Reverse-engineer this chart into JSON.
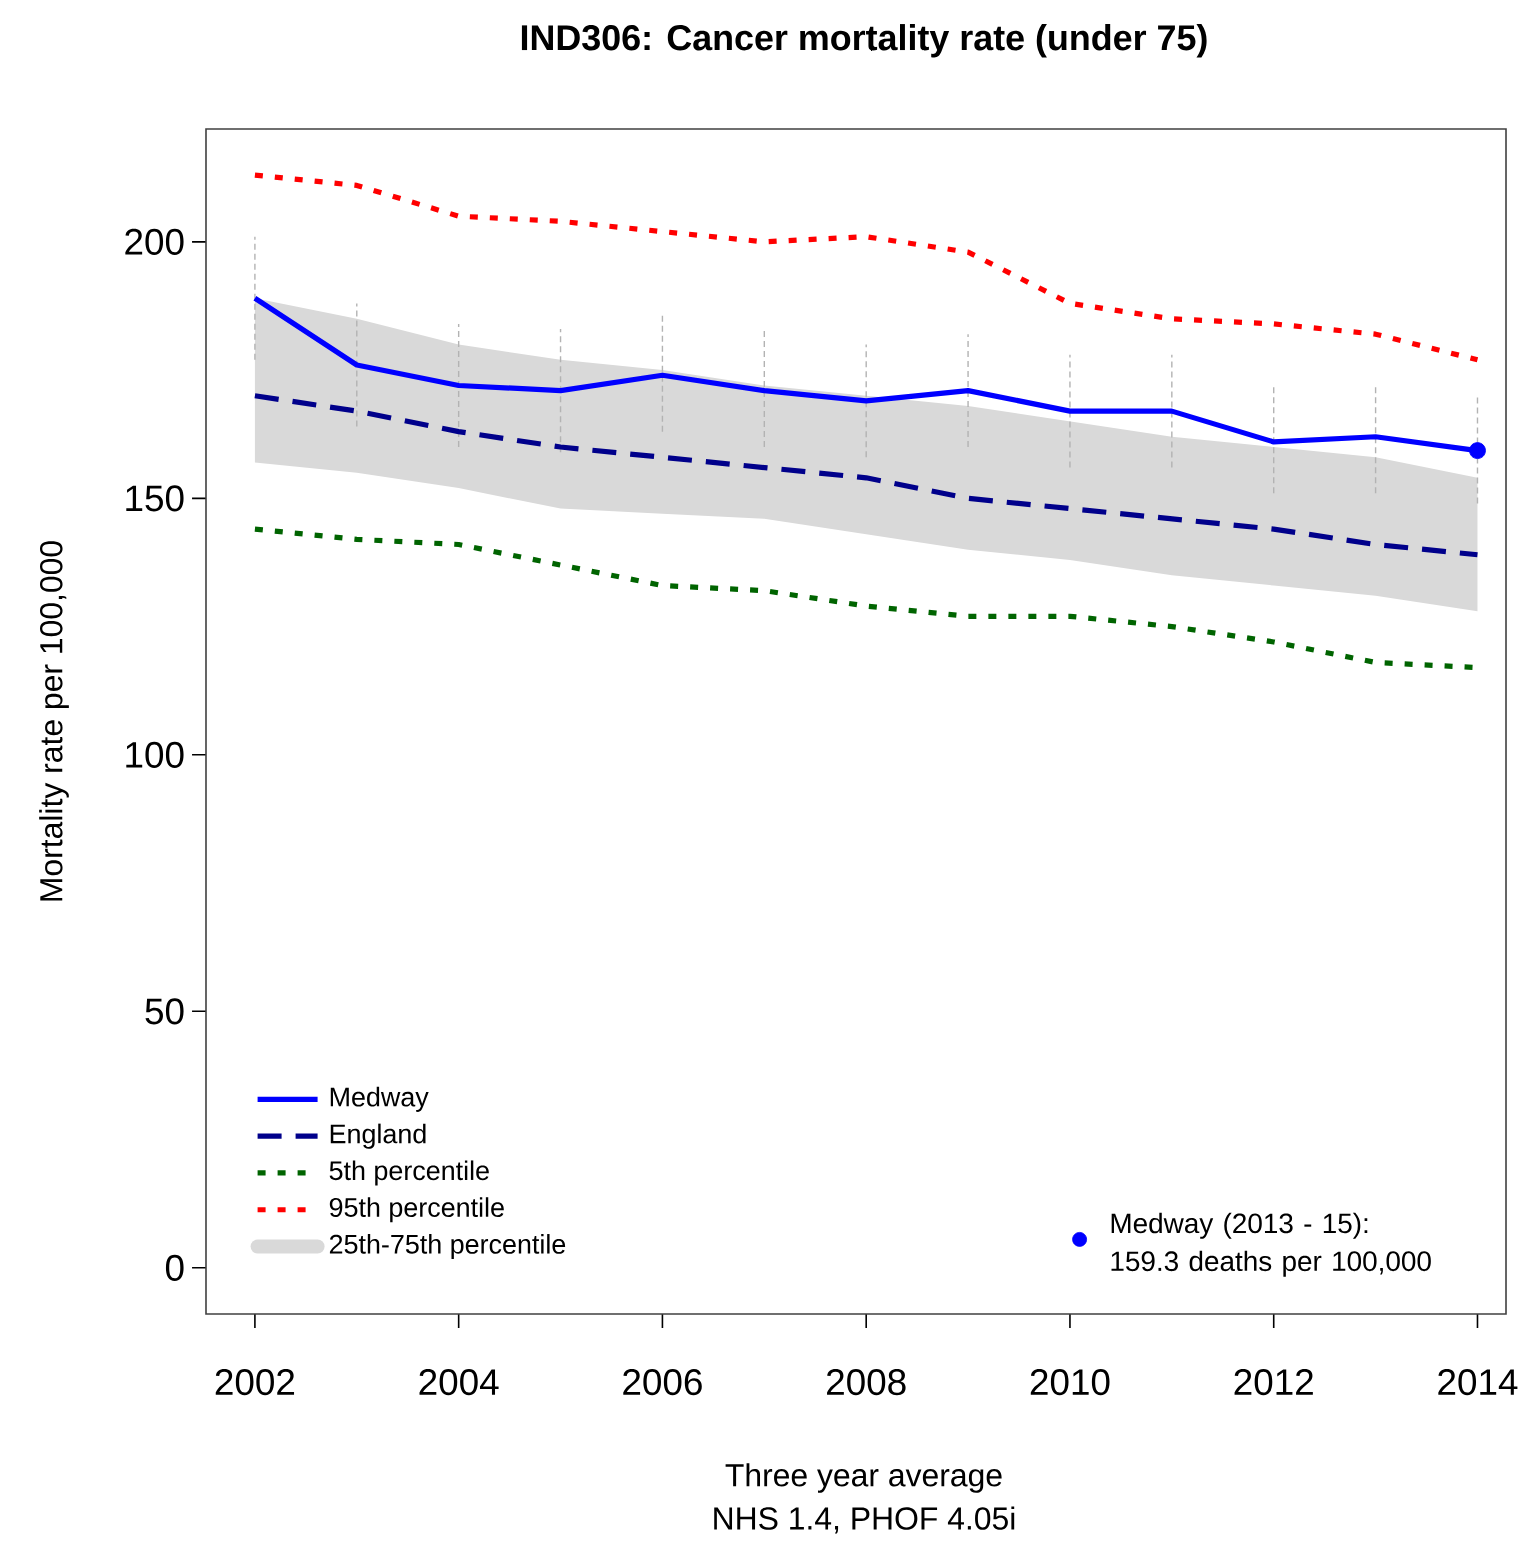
{
  "chart_data": {
    "type": "line",
    "title": "IND306: Cancer mortality rate (under 75)",
    "xlabel": "Three year average",
    "ylabel": "Mortality rate per 100,000",
    "x": [
      2002,
      2003,
      2004,
      2005,
      2006,
      2007,
      2008,
      2009,
      2010,
      2011,
      2012,
      2013,
      2014
    ],
    "xlim": [
      2001.52,
      2014.28
    ],
    "xticks": [
      2002,
      2004,
      2006,
      2008,
      2010,
      2012,
      2014
    ],
    "ylim": [
      -9,
      222
    ],
    "yticks": [
      0,
      50,
      100,
      150,
      200
    ],
    "legend": "bottom left",
    "marker": "none",
    "series": [
      {
        "name": "Medway",
        "color": "#0000ff",
        "line_style": "solid",
        "values": [
          189,
          176,
          172,
          171,
          174,
          171,
          169,
          171,
          167,
          167,
          161,
          162,
          159.3
        ],
        "errors": [
          [
            177,
            201
          ],
          [
            164,
            188
          ],
          [
            160,
            184
          ],
          [
            159,
            183
          ],
          [
            163,
            186
          ],
          [
            160,
            183
          ],
          [
            158,
            180
          ],
          [
            160,
            182
          ],
          [
            156,
            178
          ],
          [
            156,
            178
          ],
          [
            151,
            172
          ],
          [
            151,
            172
          ],
          [
            149,
            170
          ]
        ]
      },
      {
        "name": "England",
        "color": "#00008b",
        "line_style": "dashed",
        "values": [
          170,
          167,
          163,
          160,
          158,
          156,
          154,
          150,
          148,
          146,
          144,
          141,
          139
        ]
      },
      {
        "name": "5th percentile",
        "color": "#006400",
        "line_style": "dotted",
        "values": [
          144,
          142,
          141,
          137,
          133,
          132,
          129,
          127,
          127,
          125,
          122,
          118,
          117
        ]
      },
      {
        "name": "95th percentile",
        "color": "#ff0000",
        "line_style": "dotted",
        "values": [
          213,
          211,
          205,
          204,
          202,
          200,
          201,
          198,
          188,
          185,
          184,
          182,
          177
        ]
      },
      {
        "name": "25th-75th percentile",
        "type": "area",
        "color": "#d9d9d9",
        "values": [
          null,
          null,
          null,
          null,
          null,
          null,
          null,
          null,
          null,
          null,
          null,
          null,
          null
        ],
        "lower": [
          157,
          155,
          152,
          148,
          147,
          146,
          143,
          140,
          138,
          135,
          133,
          131,
          128
        ],
        "upper": [
          189,
          185,
          180,
          177,
          175,
          172,
          170,
          168,
          165,
          162,
          160,
          158,
          154
        ]
      },
      {
        "name": "Medway (2013 - 15): 159.3 deaths per 100,000",
        "type": "scatter",
        "color": "#0000ff",
        "marker": "circle",
        "x": [
          2014
        ],
        "values": [
          159.3
        ]
      }
    ],
    "annotations": [
      "NHS 1.4, PHOF 4.05i"
    ]
  }
}
